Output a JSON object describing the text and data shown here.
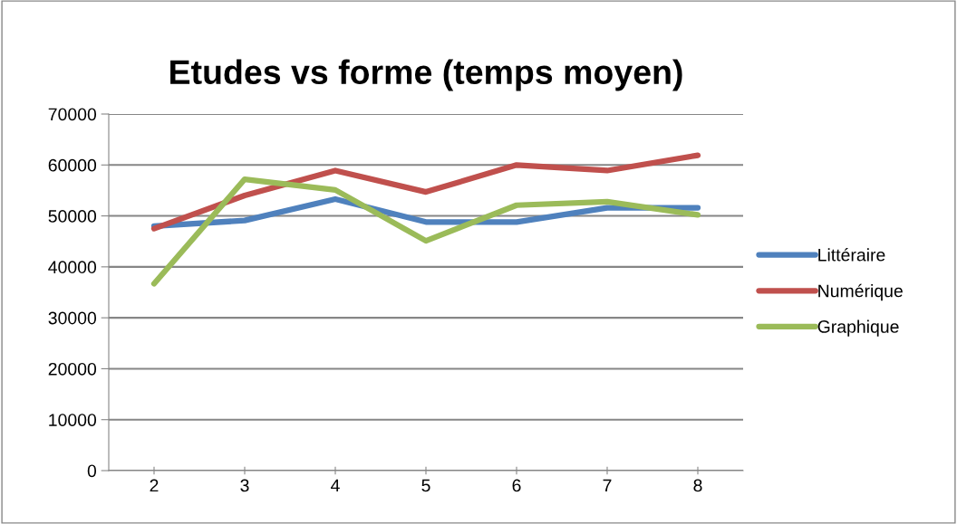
{
  "chart_data": {
    "type": "line",
    "title": "Etudes vs forme (temps moyen)",
    "categories": [
      "2",
      "3",
      "4",
      "5",
      "6",
      "7",
      "8"
    ],
    "series": [
      {
        "name": "Littéraire",
        "color": "#4f81bd",
        "values": [
          48000,
          49100,
          53300,
          48800,
          48800,
          51600,
          51600
        ]
      },
      {
        "name": "Numérique",
        "color": "#c0504d",
        "values": [
          47500,
          54000,
          58900,
          54700,
          60000,
          58900,
          61900
        ]
      },
      {
        "name": "Graphique",
        "color": "#9bbb59",
        "values": [
          36700,
          57200,
          55100,
          45100,
          52100,
          52800,
          50200
        ]
      }
    ],
    "ylim": [
      0,
      70000
    ],
    "yticks": [
      0,
      10000,
      20000,
      30000,
      40000,
      50000,
      60000,
      70000
    ],
    "grid": "y",
    "legend": "right",
    "marker": "none",
    "line_style": "solid"
  }
}
